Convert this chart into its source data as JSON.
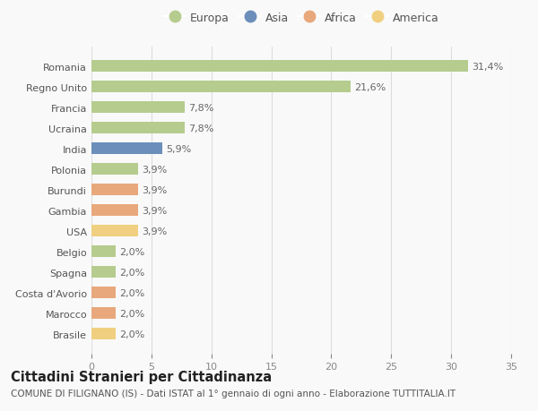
{
  "countries": [
    "Romania",
    "Regno Unito",
    "Francia",
    "Ucraina",
    "India",
    "Polonia",
    "Burundi",
    "Gambia",
    "USA",
    "Belgio",
    "Spagna",
    "Costa d'Avorio",
    "Marocco",
    "Brasile"
  ],
  "values": [
    31.4,
    21.6,
    7.8,
    7.8,
    5.9,
    3.9,
    3.9,
    3.9,
    3.9,
    2.0,
    2.0,
    2.0,
    2.0,
    2.0
  ],
  "labels": [
    "31,4%",
    "21,6%",
    "7,8%",
    "7,8%",
    "5,9%",
    "3,9%",
    "3,9%",
    "3,9%",
    "3,9%",
    "2,0%",
    "2,0%",
    "2,0%",
    "2,0%",
    "2,0%"
  ],
  "continents": [
    "Europa",
    "Europa",
    "Europa",
    "Europa",
    "Asia",
    "Europa",
    "Africa",
    "Africa",
    "America",
    "Europa",
    "Europa",
    "Africa",
    "Africa",
    "America"
  ],
  "colors": {
    "Europa": "#b5cc8e",
    "Asia": "#6b8eba",
    "Africa": "#e8a87c",
    "America": "#f0d080"
  },
  "legend_order": [
    "Europa",
    "Asia",
    "Africa",
    "America"
  ],
  "xlim": [
    0,
    35
  ],
  "xticks": [
    0,
    5,
    10,
    15,
    20,
    25,
    30,
    35
  ],
  "title": "Cittadini Stranieri per Cittadinanza",
  "subtitle": "COMUNE DI FILIGNANO (IS) - Dati ISTAT al 1° gennaio di ogni anno - Elaborazione TUTTITALIA.IT",
  "background_color": "#f9f9f9",
  "bar_height": 0.55,
  "label_fontsize": 8,
  "tick_fontsize": 8,
  "title_fontsize": 10.5,
  "subtitle_fontsize": 7.5,
  "legend_fontsize": 9
}
